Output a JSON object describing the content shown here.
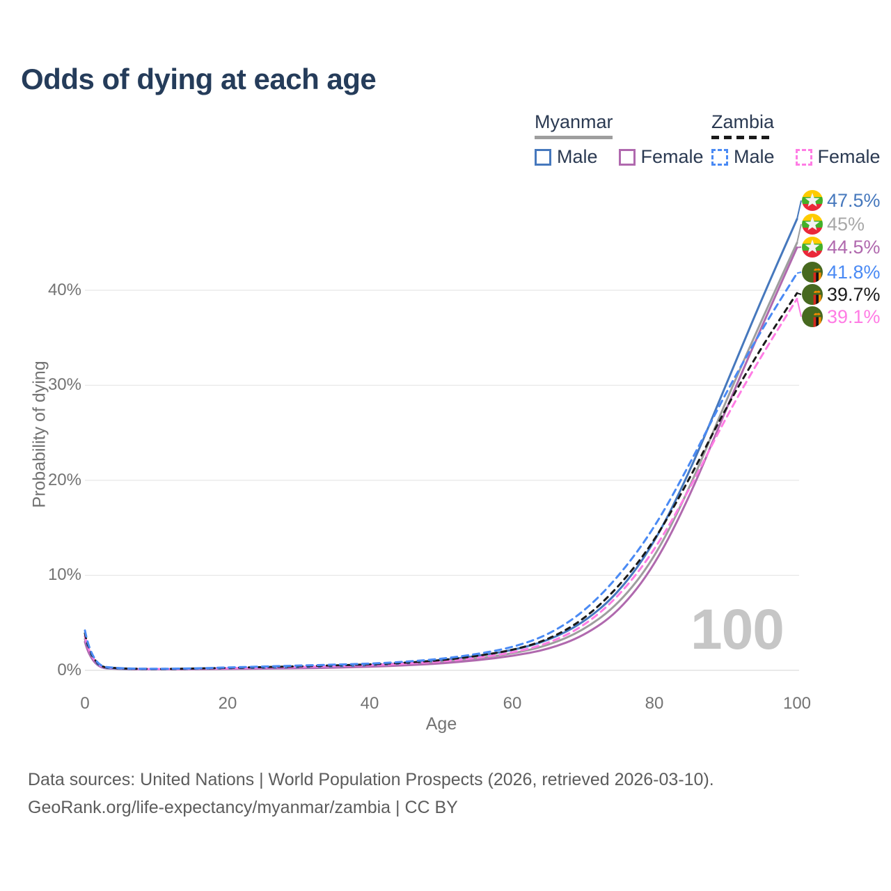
{
  "title": "Odds of dying at each age",
  "legend": {
    "myanmar": {
      "country": "Myanmar",
      "male_label": "Male",
      "female_label": "Female"
    },
    "zambia": {
      "country": "Zambia",
      "male_label": "Male",
      "female_label": "Female"
    }
  },
  "colors": {
    "myanmar_male": "#4678bd",
    "myanmar_total": "#9e9e9e",
    "myanmar_female": "#b069ae",
    "zambia_male": "#4a8af4",
    "zambia_total": "#1a1a1a",
    "zambia_female": "#ff7ce4",
    "title_text": "#253c5a",
    "axis_text": "#737373",
    "gridline": "#e7e7e7",
    "watermark_text": "#c6c6c6"
  },
  "end_labels": [
    {
      "flag": "myanmar-flag-icon",
      "value": "47.5%",
      "color": "#4678bd",
      "series": "Myanmar Male"
    },
    {
      "flag": "myanmar-flag-icon",
      "value": "45%",
      "color": "#a8a8a8",
      "series": "Myanmar Both sexes"
    },
    {
      "flag": "myanmar-flag-icon",
      "value": "44.5%",
      "color": "#b069ae",
      "series": "Myanmar Female"
    },
    {
      "flag": "zambia-flag-icon",
      "value": "41.8%",
      "color": "#4a8af4",
      "series": "Zambia Male"
    },
    {
      "flag": "zambia-flag-icon",
      "value": "39.7%",
      "color": "#1a1a1a",
      "series": "Zambia Both sexes"
    },
    {
      "flag": "zambia-flag-icon",
      "value": "39.1%",
      "color": "#ff7ce4",
      "series": "Zambia Female"
    }
  ],
  "watermark": "100",
  "chart_data": {
    "type": "line",
    "title": "Odds of dying at each age",
    "xlabel": "Age",
    "ylabel": "Probability of dying",
    "x_ticks": [
      "0",
      "20",
      "40",
      "60",
      "80",
      "100"
    ],
    "y_ticks": [
      "0%",
      "10%",
      "20%",
      "30%",
      "40%"
    ],
    "y_gridlines": [
      0,
      10,
      20,
      30,
      40
    ],
    "xlim": [
      0,
      100
    ],
    "ylim": [
      0,
      49
    ],
    "grid": "horizontal",
    "legend_position": "top-right",
    "x": [
      0,
      1,
      5,
      10,
      15,
      20,
      25,
      30,
      35,
      40,
      45,
      50,
      55,
      60,
      65,
      70,
      75,
      80,
      85,
      90,
      95,
      100
    ],
    "series": [
      {
        "name": "Myanmar Male",
        "style": "solid",
        "color": "#4678bd",
        "values": [
          3.6,
          0.35,
          0.15,
          0.12,
          0.16,
          0.22,
          0.27,
          0.33,
          0.42,
          0.55,
          0.75,
          1.05,
          1.5,
          2.1,
          3.1,
          5.0,
          8.2,
          13.4,
          21.0,
          30.0,
          39.0,
          47.5
        ]
      },
      {
        "name": "Myanmar Both sexes",
        "style": "solid",
        "color": "#9e9e9e",
        "values": [
          3.3,
          0.32,
          0.14,
          0.11,
          0.14,
          0.18,
          0.22,
          0.27,
          0.35,
          0.46,
          0.62,
          0.88,
          1.25,
          1.75,
          2.6,
          4.2,
          7.0,
          11.8,
          19.3,
          28.3,
          36.8,
          45.0
        ]
      },
      {
        "name": "Myanmar Female",
        "style": "solid",
        "color": "#b069ae",
        "values": [
          3.0,
          0.3,
          0.13,
          0.1,
          0.12,
          0.15,
          0.18,
          0.22,
          0.28,
          0.38,
          0.52,
          0.72,
          1.05,
          1.5,
          2.2,
          3.6,
          6.2,
          11.0,
          18.4,
          27.4,
          36.1,
          44.5
        ]
      },
      {
        "name": "Zambia Male",
        "style": "dashed",
        "color": "#4a8af4",
        "values": [
          4.2,
          0.5,
          0.2,
          0.15,
          0.2,
          0.3,
          0.4,
          0.5,
          0.6,
          0.7,
          0.9,
          1.2,
          1.7,
          2.4,
          3.7,
          6.1,
          9.9,
          15.0,
          21.8,
          29.2,
          35.8,
          41.8
        ]
      },
      {
        "name": "Zambia Both sexes",
        "style": "dashed",
        "color": "#1a1a1a",
        "values": [
          3.9,
          0.45,
          0.18,
          0.14,
          0.18,
          0.26,
          0.34,
          0.42,
          0.52,
          0.62,
          0.8,
          1.05,
          1.5,
          2.1,
          3.2,
          5.3,
          8.8,
          13.6,
          20.3,
          27.6,
          34.0,
          39.7
        ]
      },
      {
        "name": "Zambia Female",
        "style": "dashed",
        "color": "#ff7ce4",
        "values": [
          3.6,
          0.4,
          0.17,
          0.13,
          0.16,
          0.22,
          0.28,
          0.35,
          0.44,
          0.54,
          0.7,
          0.92,
          1.3,
          1.85,
          2.8,
          4.6,
          7.8,
          12.6,
          19.2,
          26.6,
          33.1,
          39.1
        ]
      }
    ],
    "end_values": {
      "myanmar_male": 47.5,
      "myanmar_total": 45,
      "myanmar_female": 44.5,
      "zambia_male": 41.8,
      "zambia_total": 39.7,
      "zambia_female": 39.1
    }
  },
  "footer": {
    "line1": "Data sources: United Nations | World Population Prospects (2026, retrieved 2026-03-10).",
    "line2": "GeoRank.org/life-expectancy/myanmar/zambia | CC BY"
  }
}
